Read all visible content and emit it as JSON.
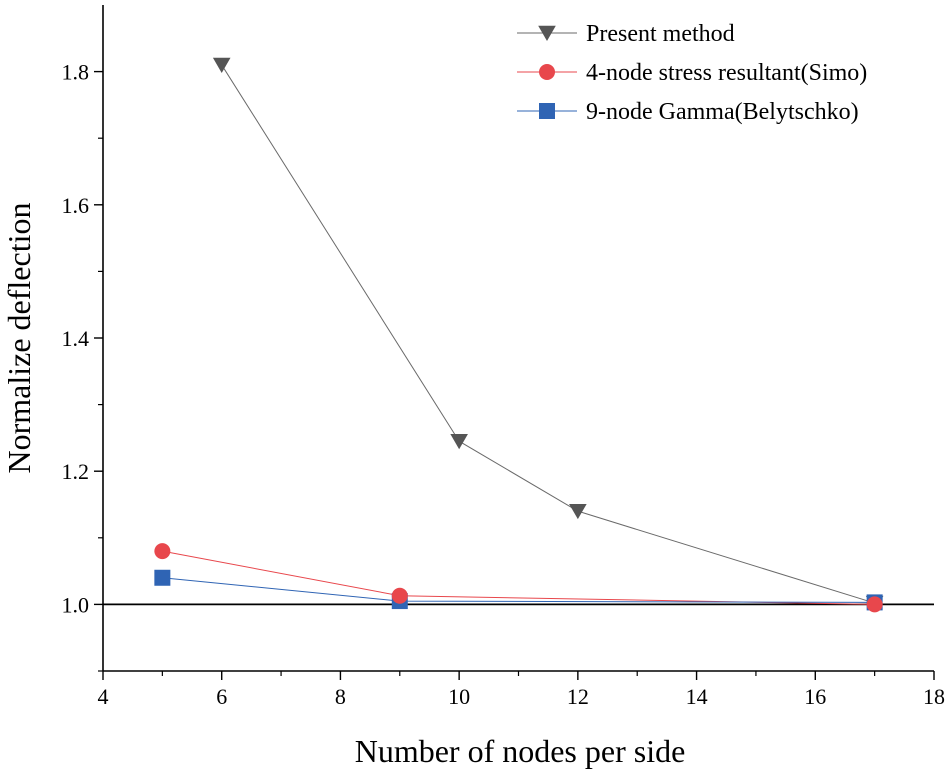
{
  "chart_data": {
    "type": "line",
    "title": "",
    "xlabel": "Number of nodes per side",
    "ylabel": "Normalize deflection",
    "xlim": [
      4,
      18
    ],
    "ylim": [
      0.9,
      1.9
    ],
    "x_ticks": [
      4,
      6,
      8,
      10,
      12,
      14,
      16,
      18
    ],
    "x_tick_labels": [
      "4",
      "6",
      "8",
      "10",
      "12",
      "14",
      "16",
      "18"
    ],
    "y_ticks": [
      1.0,
      1.2,
      1.4,
      1.6,
      1.8
    ],
    "y_tick_labels": [
      "1.0",
      "1.2",
      "1.4",
      "1.6",
      "1.8"
    ],
    "reference_line": 1.0,
    "grid": false,
    "legend": "top-right",
    "series": [
      {
        "name": "Present method",
        "marker": "triangle-down",
        "color": "#555555",
        "x": [
          6,
          10,
          12,
          17
        ],
        "y": [
          1.81,
          1.245,
          1.14,
          1.002
        ]
      },
      {
        "name": "4-node stress resultant(Simo)",
        "marker": "circle",
        "color": "#e8474c",
        "x": [
          5,
          9,
          17
        ],
        "y": [
          1.08,
          1.013,
          1.0
        ]
      },
      {
        "name": "9-node Gamma(Belytschko)",
        "marker": "square",
        "color": "#2f64b4",
        "x": [
          5,
          9,
          17
        ],
        "y": [
          1.04,
          1.005,
          1.003
        ]
      }
    ]
  }
}
